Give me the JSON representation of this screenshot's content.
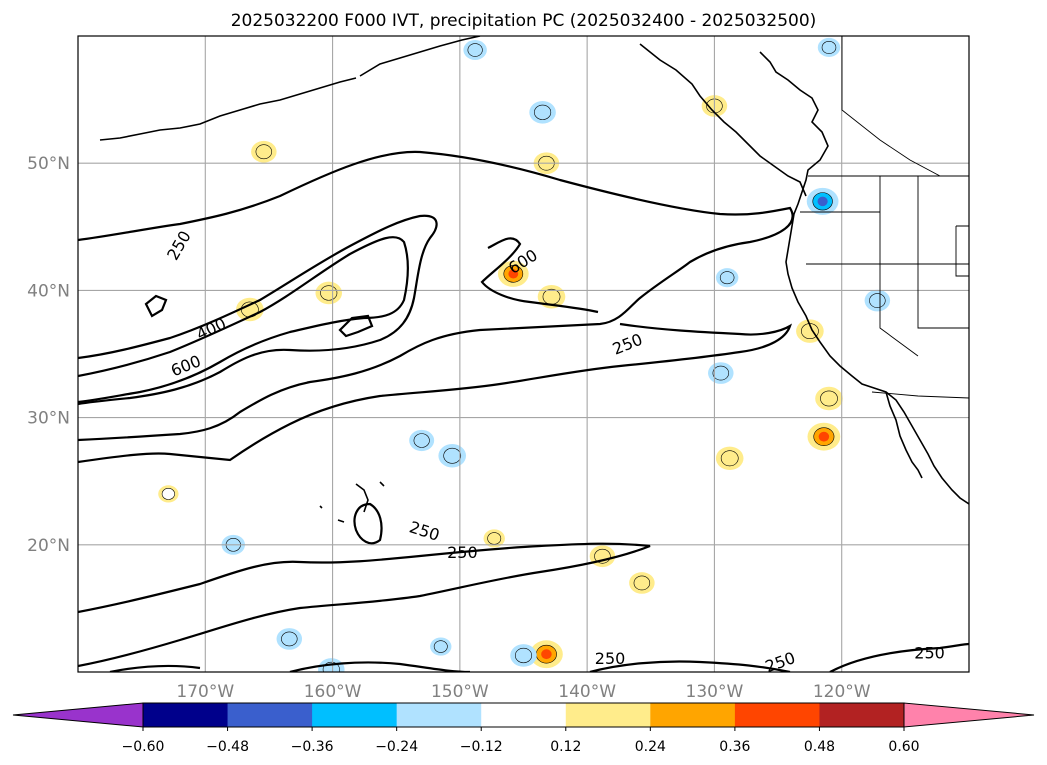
{
  "chart_data": {
    "type": "filled-contour map",
    "title": "2025032200 F000 IVT, precipitation PC (2025032400 - 2025032500)",
    "map": {
      "lon_range": [
        -180,
        -110
      ],
      "lat_range": [
        10,
        60
      ],
      "lat_ticks": [
        {
          "value": 20,
          "label": "20°N"
        },
        {
          "value": 30,
          "label": "30°N"
        },
        {
          "value": 40,
          "label": "40°N"
        },
        {
          "value": 50,
          "label": "50°N"
        }
      ],
      "lon_ticks": [
        {
          "value": -170,
          "label": "170°W"
        },
        {
          "value": -160,
          "label": "160°W"
        },
        {
          "value": -150,
          "label": "150°W"
        },
        {
          "value": -140,
          "label": "140°W"
        },
        {
          "value": -130,
          "label": "130°W"
        },
        {
          "value": -120,
          "label": "120°W"
        }
      ],
      "grid": true
    },
    "colorbar": {
      "orientation": "horizontal",
      "extend": "both",
      "levels": [
        -0.6,
        -0.48,
        -0.36,
        -0.24,
        -0.12,
        0.12,
        0.24,
        0.36,
        0.48,
        0.6
      ],
      "tick_labels": [
        "−0.60",
        "−0.48",
        "−0.36",
        "−0.24",
        "−0.12",
        "0.12",
        "0.24",
        "0.36",
        "0.48",
        "0.60"
      ],
      "colors": [
        "#9933cc",
        "#00008b",
        "#3a5fcd",
        "#00bfff",
        "#b0e2ff",
        "#ffffff",
        "#ffec8b",
        "#ffa500",
        "#ff4500",
        "#b22222",
        "#ff82ab"
      ]
    },
    "ivt_contours": {
      "levels": [
        250,
        400,
        600
      ],
      "labels": [
        {
          "text": "250",
          "lon": -172.0,
          "lat": 43.5,
          "rot": -60
        },
        {
          "text": "400",
          "lon": -169.5,
          "lat": 36.9,
          "rot": -25
        },
        {
          "text": "600",
          "lon": -171.5,
          "lat": 34.0,
          "rot": -22
        },
        {
          "text": "600",
          "lon": -145.0,
          "lat": 42.2,
          "rot": -32
        },
        {
          "text": "250",
          "lon": -136.8,
          "lat": 35.7,
          "rot": -22
        },
        {
          "text": "250",
          "lon": -152.8,
          "lat": 21.0,
          "rot": 18
        },
        {
          "text": "250",
          "lon": -149.8,
          "lat": 19.3,
          "rot": 0
        },
        {
          "text": "250",
          "lon": -138.2,
          "lat": 11.0,
          "rot": 0
        },
        {
          "text": "250",
          "lon": -124.8,
          "lat": 10.7,
          "rot": -20
        },
        {
          "text": "250",
          "lon": -113.1,
          "lat": 11.4,
          "rot": 0
        }
      ]
    },
    "precip_anomalies": [
      {
        "lon": -145.8,
        "lat": 41.3,
        "value": 0.36
      },
      {
        "lon": -121.4,
        "lat": 28.5,
        "value": 0.4
      },
      {
        "lon": -121.0,
        "lat": 31.5,
        "value": 0.3
      },
      {
        "lon": -122.5,
        "lat": 36.8,
        "value": 0.3
      },
      {
        "lon": -166.5,
        "lat": 38.5,
        "value": 0.3
      },
      {
        "lon": -160.3,
        "lat": 39.8,
        "value": 0.28
      },
      {
        "lon": -142.8,
        "lat": 39.5,
        "value": 0.3
      },
      {
        "lon": -143.2,
        "lat": 11.4,
        "value": 0.4
      },
      {
        "lon": -128.8,
        "lat": 26.8,
        "value": 0.3
      },
      {
        "lon": -138.8,
        "lat": 19.1,
        "value": 0.26
      },
      {
        "lon": -135.7,
        "lat": 17.0,
        "value": 0.26
      },
      {
        "lon": -165.4,
        "lat": 50.9,
        "value": 0.26
      },
      {
        "lon": -143.2,
        "lat": 50.0,
        "value": 0.26
      },
      {
        "lon": -130.0,
        "lat": 54.5,
        "value": 0.26
      },
      {
        "lon": -147.3,
        "lat": 20.5,
        "value": 0.18
      },
      {
        "lon": -172.9,
        "lat": 24.0,
        "value": 0.16
      },
      {
        "lon": -121.5,
        "lat": 47.0,
        "value": -0.38
      },
      {
        "lon": -150.6,
        "lat": 27.0,
        "value": -0.3
      },
      {
        "lon": -153.0,
        "lat": 28.2,
        "value": -0.25
      },
      {
        "lon": -145.0,
        "lat": 11.3,
        "value": -0.28
      },
      {
        "lon": -143.5,
        "lat": 54.0,
        "value": -0.28
      },
      {
        "lon": -160.1,
        "lat": 10.2,
        "value": -0.28
      },
      {
        "lon": -163.4,
        "lat": 12.6,
        "value": -0.26
      },
      {
        "lon": -129.5,
        "lat": 33.5,
        "value": -0.26
      },
      {
        "lon": -117.2,
        "lat": 39.2,
        "value": -0.26
      },
      {
        "lon": -148.8,
        "lat": 58.9,
        "value": -0.22
      },
      {
        "lon": -121.0,
        "lat": 59.1,
        "value": -0.2
      },
      {
        "lon": -129.0,
        "lat": 41.0,
        "value": -0.2
      },
      {
        "lon": -151.5,
        "lat": 12.0,
        "value": -0.18
      },
      {
        "lon": -167.8,
        "lat": 20.0,
        "value": -0.22
      }
    ]
  }
}
